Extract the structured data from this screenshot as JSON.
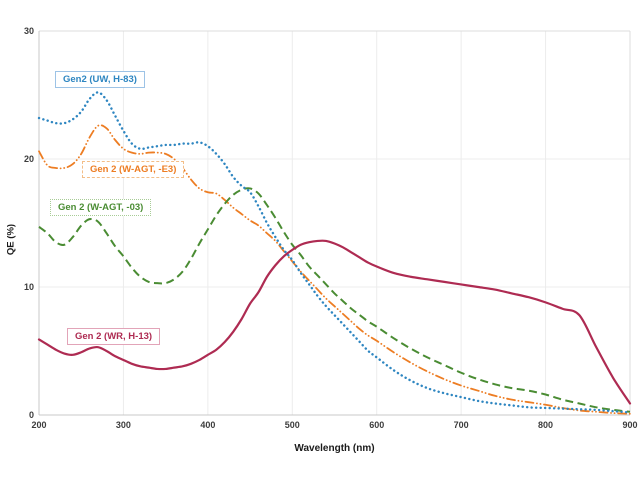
{
  "chart_data": {
    "type": "line",
    "title": "",
    "xlabel": "Wavelength (nm)",
    "ylabel": "QE (%)",
    "xlim": [
      200,
      900
    ],
    "ylim": [
      0,
      30
    ],
    "x_ticks": [
      200,
      300,
      400,
      500,
      600,
      700,
      800,
      900
    ],
    "y_ticks": [
      0,
      10,
      20,
      30
    ],
    "grid": true,
    "legend_position": "inline-labels",
    "grid_color": "#ececec",
    "axis_color": "#c8c8c8",
    "tick_color": "#3c3c3c",
    "x": [
      200,
      210,
      220,
      230,
      240,
      250,
      260,
      270,
      280,
      290,
      300,
      310,
      320,
      330,
      340,
      350,
      360,
      370,
      380,
      390,
      400,
      410,
      420,
      430,
      440,
      450,
      460,
      470,
      480,
      490,
      500,
      510,
      520,
      530,
      540,
      550,
      560,
      570,
      580,
      590,
      600,
      620,
      640,
      660,
      680,
      700,
      720,
      740,
      760,
      780,
      800,
      820,
      840,
      860,
      880,
      900
    ],
    "series": [
      {
        "name": "Gen2 (UW, H-83)",
        "color": "#2e86c1",
        "style": "dotted",
        "values": [
          23.2,
          23.0,
          22.8,
          22.8,
          23.1,
          23.7,
          24.7,
          25.2,
          24.6,
          23.4,
          22.2,
          21.2,
          20.8,
          20.9,
          21.0,
          21.1,
          21.1,
          21.2,
          21.2,
          21.3,
          21.0,
          20.4,
          19.6,
          18.6,
          17.9,
          17.4,
          16.3,
          15.0,
          13.9,
          12.9,
          12.1,
          11.1,
          10.2,
          9.3,
          8.5,
          7.8,
          7.1,
          6.4,
          5.7,
          5.0,
          4.5,
          3.5,
          2.7,
          2.1,
          1.7,
          1.4,
          1.1,
          0.9,
          0.75,
          0.6,
          0.55,
          0.5,
          0.45,
          0.4,
          0.3,
          0.2
        ]
      },
      {
        "name": "Gen 2 (W-AGT, -E3)",
        "color": "#ed7d23",
        "style": "dashdotdot",
        "values": [
          20.6,
          19.5,
          19.3,
          19.3,
          19.6,
          20.4,
          21.7,
          22.6,
          22.4,
          21.5,
          20.8,
          20.5,
          20.4,
          20.5,
          20.5,
          20.4,
          20.0,
          19.3,
          18.4,
          17.7,
          17.4,
          17.3,
          16.8,
          16.2,
          15.7,
          15.2,
          14.8,
          14.2,
          13.6,
          12.8,
          12.0,
          11.2,
          10.5,
          9.8,
          9.1,
          8.5,
          7.9,
          7.3,
          6.7,
          6.2,
          5.8,
          4.9,
          4.1,
          3.4,
          2.8,
          2.3,
          1.9,
          1.5,
          1.2,
          1.0,
          0.8,
          0.55,
          0.35,
          0.25,
          0.15,
          0.1
        ]
      },
      {
        "name": "Gen 2 (W-AGT, -03)",
        "color": "#4a8c33",
        "style": "dashed",
        "values": [
          14.7,
          14.2,
          13.5,
          13.3,
          13.9,
          14.8,
          15.3,
          15.1,
          14.2,
          13.2,
          12.4,
          11.5,
          10.8,
          10.4,
          10.3,
          10.3,
          10.6,
          11.2,
          12.2,
          13.4,
          14.5,
          15.6,
          16.5,
          17.2,
          17.6,
          17.7,
          17.3,
          16.4,
          15.4,
          14.3,
          13.3,
          12.5,
          11.6,
          10.9,
          10.2,
          9.5,
          8.9,
          8.3,
          7.8,
          7.3,
          6.9,
          6.0,
          5.2,
          4.5,
          3.9,
          3.3,
          2.8,
          2.4,
          2.1,
          1.9,
          1.6,
          1.2,
          0.9,
          0.6,
          0.4,
          0.25
        ]
      },
      {
        "name": "Gen 2 (WR, H-13)",
        "color": "#ae2b52",
        "style": "solid",
        "values": [
          5.9,
          5.5,
          5.1,
          4.8,
          4.7,
          4.9,
          5.2,
          5.3,
          5.0,
          4.6,
          4.3,
          4.0,
          3.8,
          3.7,
          3.6,
          3.6,
          3.7,
          3.8,
          4.0,
          4.3,
          4.7,
          5.1,
          5.7,
          6.5,
          7.5,
          8.7,
          9.6,
          10.8,
          11.7,
          12.4,
          12.9,
          13.3,
          13.5,
          13.6,
          13.6,
          13.4,
          13.1,
          12.7,
          12.3,
          11.9,
          11.6,
          11.1,
          10.8,
          10.6,
          10.4,
          10.2,
          10.0,
          9.8,
          9.5,
          9.2,
          8.8,
          8.3,
          7.8,
          5.3,
          2.9,
          0.9
        ]
      }
    ]
  }
}
